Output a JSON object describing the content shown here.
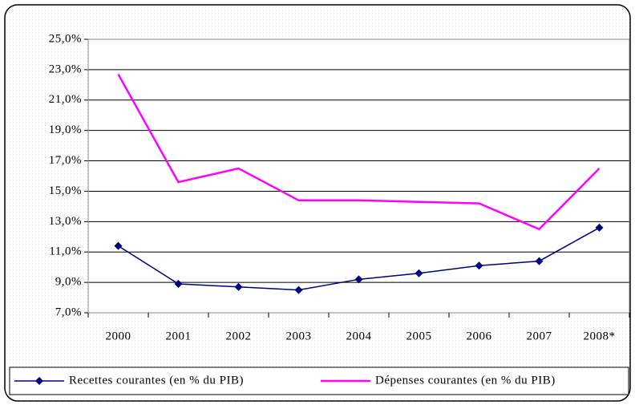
{
  "chart_data": {
    "type": "line",
    "categories": [
      "2000",
      "2001",
      "2002",
      "2003",
      "2004",
      "2005",
      "2006",
      "2007",
      "2008*"
    ],
    "series": [
      {
        "name": "Recettes courantes (en % du PIB)",
        "color": "#000080",
        "values": [
          11.4,
          8.9,
          8.7,
          8.5,
          9.2,
          9.6,
          10.1,
          10.4,
          12.6
        ]
      },
      {
        "name": "Dépenses courantes (en % du PIB)",
        "color": "#ff00ff",
        "values": [
          22.7,
          15.6,
          16.5,
          14.4,
          14.4,
          14.3,
          14.2,
          12.5,
          16.5
        ]
      }
    ],
    "ylim": [
      7,
      25
    ],
    "yticks": [
      {
        "value": 7,
        "label": "7,0%"
      },
      {
        "value": 9,
        "label": "9,0%"
      },
      {
        "value": 11,
        "label": "11,0%"
      },
      {
        "value": 13,
        "label": "13,0%"
      },
      {
        "value": 15,
        "label": "15,0%"
      },
      {
        "value": 17,
        "label": "17,0%"
      },
      {
        "value": 19,
        "label": "19,0%"
      },
      {
        "value": 21,
        "label": "21,0%"
      },
      {
        "value": 23,
        "label": "23,0%"
      },
      {
        "value": 25,
        "label": "25,0%"
      }
    ],
    "grid": true,
    "legend": "bottom"
  }
}
